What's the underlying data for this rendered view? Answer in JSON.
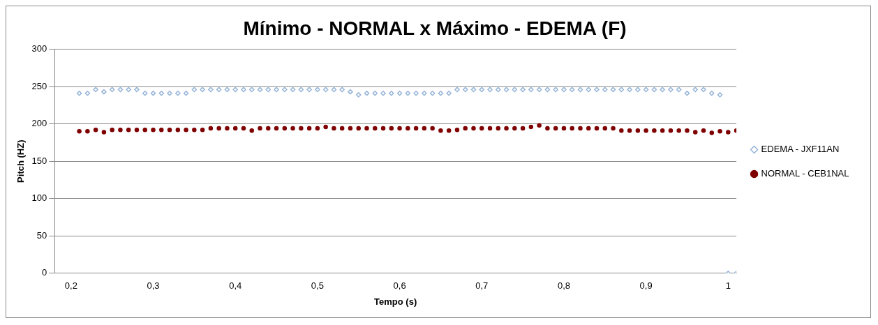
{
  "chart_data": {
    "type": "scatter",
    "title": "Mínimo - NORMAL x Máximo - EDEMA (F)",
    "xlabel": "Tempo (s)",
    "ylabel": "Pitch (HZ)",
    "x": [
      0.21,
      0.22,
      0.23,
      0.24,
      0.25,
      0.26,
      0.27,
      0.28,
      0.29,
      0.3,
      0.31,
      0.32,
      0.33,
      0.34,
      0.35,
      0.36,
      0.37,
      0.38,
      0.39,
      0.4,
      0.41,
      0.42,
      0.43,
      0.44,
      0.45,
      0.46,
      0.47,
      0.48,
      0.49,
      0.5,
      0.51,
      0.52,
      0.53,
      0.54,
      0.55,
      0.56,
      0.57,
      0.58,
      0.59,
      0.6,
      0.61,
      0.62,
      0.63,
      0.64,
      0.65,
      0.66,
      0.67,
      0.68,
      0.69,
      0.7,
      0.71,
      0.72,
      0.73,
      0.74,
      0.75,
      0.76,
      0.77,
      0.78,
      0.79,
      0.8,
      0.81,
      0.82,
      0.83,
      0.84,
      0.85,
      0.86,
      0.87,
      0.88,
      0.89,
      0.9,
      0.91,
      0.92,
      0.93,
      0.94,
      0.95,
      0.96,
      0.97,
      0.98,
      0.99,
      1.0,
      1.01
    ],
    "series": [
      {
        "name": "EDEMA - JXF11AN",
        "color": "#95b3d7",
        "marker": "diamond",
        "values": [
          241,
          241,
          246,
          243,
          246,
          246,
          246,
          246,
          241,
          241,
          241,
          241,
          241,
          241,
          246,
          246,
          246,
          246,
          246,
          246,
          246,
          246,
          246,
          246,
          246,
          246,
          246,
          246,
          246,
          246,
          246,
          246,
          246,
          243,
          239,
          241,
          241,
          241,
          241,
          241,
          241,
          241,
          241,
          241,
          241,
          241,
          246,
          246,
          246,
          246,
          246,
          246,
          246,
          246,
          246,
          246,
          246,
          246,
          246,
          246,
          246,
          246,
          246,
          246,
          246,
          246,
          246,
          246,
          246,
          246,
          246,
          246,
          246,
          246,
          241,
          246,
          246,
          241,
          239,
          0,
          0
        ]
      },
      {
        "name": "NORMAL - CEB1NAL",
        "color": "#7f0000",
        "marker": "circle",
        "values": [
          190,
          190,
          192,
          189,
          192,
          192,
          192,
          192,
          192,
          192,
          192,
          192,
          192,
          192,
          192,
          192,
          194,
          194,
          194,
          194,
          194,
          191,
          194,
          194,
          194,
          194,
          194,
          194,
          194,
          194,
          196,
          194,
          194,
          194,
          194,
          194,
          194,
          194,
          194,
          194,
          194,
          194,
          194,
          194,
          191,
          191,
          192,
          194,
          194,
          194,
          194,
          194,
          194,
          194,
          194,
          196,
          198,
          194,
          194,
          194,
          194,
          194,
          194,
          194,
          194,
          194,
          191,
          191,
          191,
          191,
          191,
          191,
          191,
          191,
          191,
          189,
          191,
          188,
          190,
          189,
          191
        ]
      }
    ],
    "xlim": [
      0.18,
      1.01
    ],
    "xticks": [
      {
        "value": 0.2,
        "label": "0,2"
      },
      {
        "value": 0.3,
        "label": "0,3"
      },
      {
        "value": 0.4,
        "label": "0,4"
      },
      {
        "value": 0.5,
        "label": "0,5"
      },
      {
        "value": 0.6,
        "label": "0,6"
      },
      {
        "value": 0.7,
        "label": "0,7"
      },
      {
        "value": 0.8,
        "label": "0,8"
      },
      {
        "value": 0.9,
        "label": "0,9"
      },
      {
        "value": 1,
        "label": "1"
      }
    ],
    "ylim": [
      0,
      300
    ],
    "yticks": [
      0,
      50,
      100,
      150,
      200,
      250,
      300
    ],
    "grid": "y",
    "legend": "right"
  }
}
